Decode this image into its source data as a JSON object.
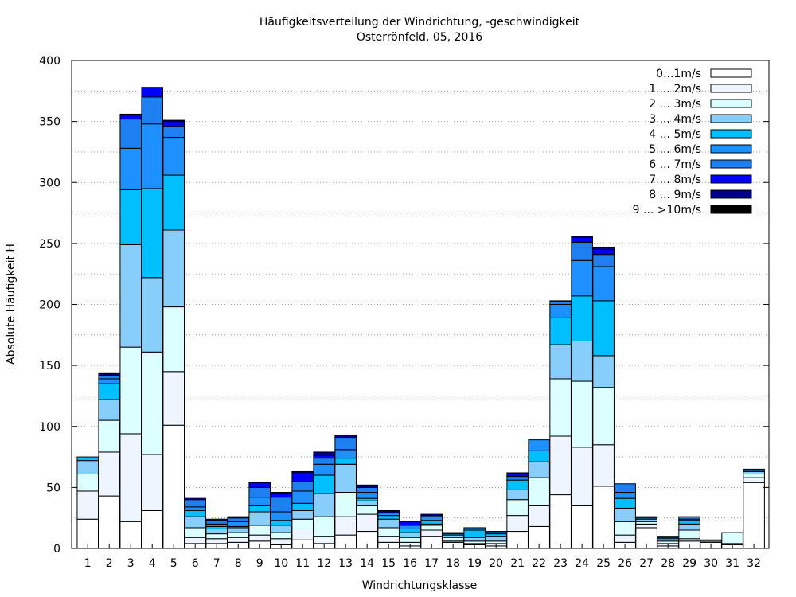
{
  "chart_data": {
    "type": "bar",
    "stacked": true,
    "title": "Häufigkeitsverteilung der Windrichtung, -geschwindigkeit",
    "subtitle": "Osterrönfeld, 05, 2016",
    "xlabel": "Windrichtungsklasse",
    "ylabel": "Absolute Häufigkeit H",
    "ylim": [
      0,
      400
    ],
    "yticks": [
      "0",
      "50",
      "100",
      "150",
      "200",
      "250",
      "300",
      "350",
      "400"
    ],
    "grid": true,
    "legend_position": "top-right",
    "categories": [
      "1",
      "2",
      "3",
      "4",
      "5",
      "6",
      "7",
      "8",
      "9",
      "10",
      "11",
      "12",
      "13",
      "14",
      "15",
      "16",
      "17",
      "18",
      "19",
      "20",
      "21",
      "22",
      "23",
      "24",
      "25",
      "26",
      "27",
      "28",
      "29",
      "30",
      "31",
      "32"
    ],
    "series": [
      {
        "name": "0...1m/s",
        "color": "#ffffff",
        "values": [
          24,
          43,
          22,
          31,
          101,
          4,
          4,
          5,
          6,
          3,
          7,
          4,
          11,
          14,
          5,
          2,
          10,
          5,
          3,
          2,
          14,
          18,
          44,
          35,
          51,
          5,
          17,
          2,
          6,
          5,
          3,
          54
        ]
      },
      {
        "name": "1 ... 2m/s",
        "color": "#eef5ff",
        "values": [
          23,
          36,
          72,
          46,
          44,
          5,
          4,
          4,
          5,
          5,
          9,
          6,
          15,
          14,
          5,
          3,
          5,
          1,
          1,
          2,
          13,
          17,
          48,
          48,
          34,
          6,
          3,
          2,
          2,
          1,
          1,
          4
        ]
      },
      {
        "name": "2 ... 3m/s",
        "color": "#dcffff",
        "values": [
          14,
          26,
          71,
          84,
          53,
          8,
          4,
          4,
          8,
          5,
          8,
          16,
          20,
          7,
          7,
          4,
          4,
          3,
          2,
          2,
          13,
          23,
          47,
          54,
          47,
          11,
          2,
          2,
          7,
          1,
          9,
          3
        ]
      },
      {
        "name": "3 ... 4m/s",
        "color": "#87cefa",
        "values": [
          11,
          17,
          84,
          61,
          63,
          9,
          4,
          4,
          11,
          6,
          7,
          19,
          23,
          4,
          7,
          4,
          1,
          2,
          3,
          4,
          8,
          13,
          28,
          33,
          26,
          11,
          2,
          2,
          5,
          0,
          0,
          2
        ]
      },
      {
        "name": "4 ... 5m/s",
        "color": "#00bfff",
        "values": [
          3,
          13,
          45,
          73,
          45,
          5,
          2,
          1,
          5,
          4,
          6,
          15,
          5,
          2,
          3,
          3,
          3,
          1,
          6,
          2,
          8,
          9,
          22,
          37,
          45,
          8,
          1,
          1,
          3,
          0,
          0,
          1
        ]
      },
      {
        "name": "5 ... 6m/s",
        "color": "#1e90ff",
        "values": [
          0,
          4,
          34,
          53,
          31,
          3,
          2,
          4,
          7,
          7,
          10,
          9,
          7,
          5,
          2,
          3,
          3,
          1,
          1,
          1,
          0,
          9,
          11,
          29,
          28,
          5,
          1,
          1,
          1,
          0,
          0,
          1
        ]
      },
      {
        "name": "6 ... 7m/s",
        "color": "#1e7ff0",
        "values": [
          0,
          3,
          24,
          22,
          9,
          6,
          3,
          3,
          8,
          12,
          8,
          5,
          10,
          4,
          0,
          0,
          1,
          0,
          1,
          1,
          3,
          0,
          2,
          15,
          10,
          7,
          0,
          0,
          2,
          0,
          0,
          0
        ]
      },
      {
        "name": "7 ... 8m/s",
        "color": "#0000ff",
        "values": [
          0,
          1,
          4,
          8,
          4,
          1,
          1,
          1,
          4,
          3,
          7,
          2,
          0,
          1,
          1,
          3,
          1,
          0,
          0,
          0,
          2,
          0,
          0,
          4,
          4,
          0,
          0,
          0,
          0,
          0,
          0,
          0
        ]
      },
      {
        "name": "8 ... 9m/s",
        "color": "#00008b",
        "values": [
          0,
          1,
          0,
          0,
          1,
          0,
          0,
          0,
          0,
          1,
          1,
          3,
          2,
          1,
          1,
          0,
          0,
          0,
          0,
          0,
          1,
          0,
          1,
          1,
          2,
          0,
          0,
          0,
          0,
          0,
          0,
          0
        ]
      },
      {
        "name": "9 ... >10m/s",
        "color": "#000000",
        "values": [
          0,
          0,
          0,
          0,
          0,
          0,
          0,
          0,
          0,
          0,
          0,
          0,
          0,
          0,
          0,
          0,
          0,
          0,
          0,
          0,
          0,
          0,
          0,
          0,
          0,
          0,
          0,
          0,
          0,
          0,
          0,
          0
        ]
      }
    ]
  }
}
